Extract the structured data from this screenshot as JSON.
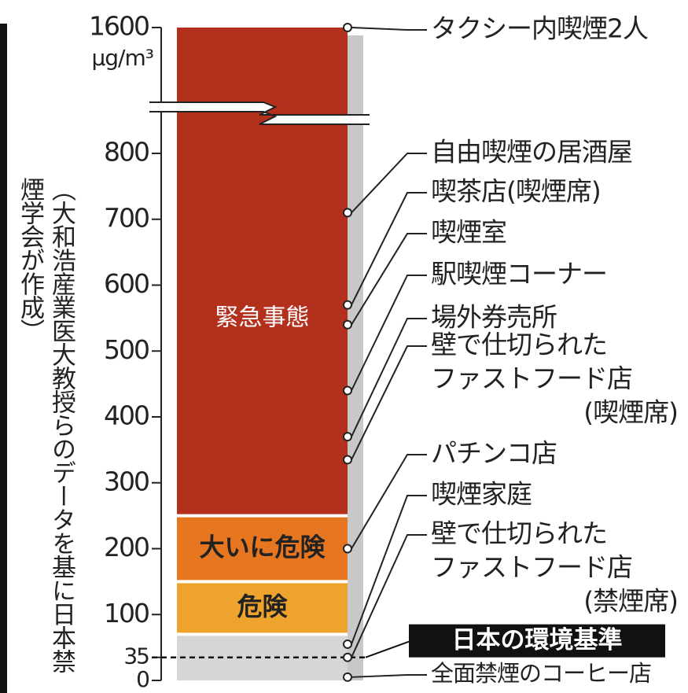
{
  "chart_data": {
    "type": "band-column",
    "source": "（大和浩産業医大教授らのデータを基に日本禁煙学会が作成）",
    "unit": "μg/m³",
    "ylim": [
      0,
      1600
    ],
    "yticks": [
      0,
      35,
      100,
      200,
      300,
      400,
      500,
      600,
      700,
      800,
      1600
    ],
    "axis_break": true,
    "bands": [
      {
        "label": "緊急事態",
        "from": 250,
        "to": 1600,
        "color": "#b3301d"
      },
      {
        "label": "大いに危険",
        "from": 150,
        "to": 250,
        "color": "#e6761f"
      },
      {
        "label": "危険",
        "from": 70,
        "to": 150,
        "color": "#eea32d"
      },
      {
        "from": 0,
        "to": 70,
        "color": "#d6d6d6"
      }
    ],
    "standard": {
      "label": "日本の環境基準",
      "value": 35
    },
    "points": [
      {
        "lines": [
          "タクシー内喫煙2人"
        ],
        "value": 1600
      },
      {
        "lines": [
          "自由喫煙の居酒屋"
        ],
        "value": 710
      },
      {
        "lines": [
          "喫茶店(喫煙席)"
        ],
        "value": 570
      },
      {
        "lines": [
          "喫煙室"
        ],
        "value": 540
      },
      {
        "lines": [
          "駅喫煙コーナー"
        ],
        "value": 440
      },
      {
        "lines": [
          "場外券売所"
        ],
        "value": 370
      },
      {
        "lines": [
          "壁で仕切られた",
          "ファストフード店",
          "(喫煙席)"
        ],
        "value": 335
      },
      {
        "lines": [
          "パチンコ店"
        ],
        "value": 200
      },
      {
        "lines": [
          "喫煙家庭"
        ],
        "value": 55
      },
      {
        "lines": [
          "壁で仕切られた",
          "ファストフード店",
          "(禁煙席)"
        ],
        "value": 35
      },
      {
        "lines": [
          "全面禁煙のコーヒー店"
        ],
        "value": 5
      }
    ]
  }
}
